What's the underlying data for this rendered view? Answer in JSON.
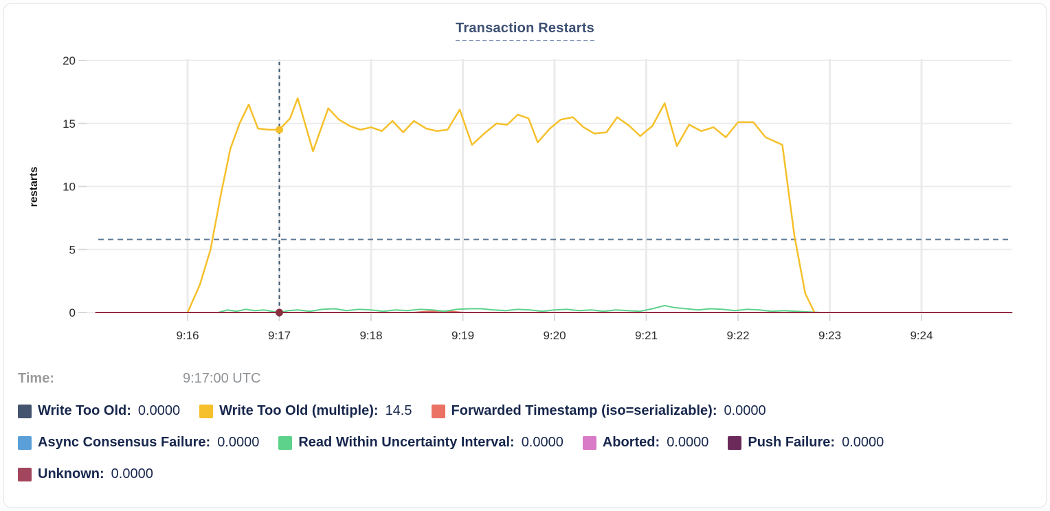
{
  "chart_data": {
    "type": "line",
    "title": "Transaction Restarts",
    "ylabel": "restarts",
    "xlabel": "",
    "ylim": [
      0,
      20
    ],
    "y_ticks": [
      0,
      5,
      10,
      15,
      20
    ],
    "x_ticks": [
      "9:16",
      "9:17",
      "9:18",
      "9:19",
      "9:20",
      "9:21",
      "9:22",
      "9:23",
      "9:24"
    ],
    "grid": true,
    "legend_position": "bottom",
    "hover": {
      "time": "9:17:00 UTC",
      "crosshair_tick": "9:17",
      "guide_value": 5.8,
      "points": [
        {
          "series": "Write Too Old (multiple)",
          "value": 14.5,
          "color": "#f5c02b"
        },
        {
          "series": "Unknown",
          "value": 0,
          "color": "#8a2f3f"
        }
      ]
    },
    "series": [
      {
        "name": "Write Too Old",
        "color": "#44536e",
        "points": [
          [
            -60,
            0
          ],
          [
            539,
            0
          ]
        ]
      },
      {
        "name": "Async Consensus Failure",
        "color": "#5b9fd8",
        "points": [
          [
            -60,
            0
          ],
          [
            539,
            0
          ]
        ]
      },
      {
        "name": "Aborted",
        "color": "#d97bc6",
        "points": [
          [
            -60,
            0
          ],
          [
            539,
            0
          ]
        ]
      },
      {
        "name": "Push Failure",
        "color": "#6c2a5b",
        "points": [
          [
            -60,
            0
          ],
          [
            539,
            0
          ]
        ]
      },
      {
        "name": "Forwarded Timestamp (iso=serializable)",
        "color": "#eb7164",
        "points": [
          [
            -60,
            0
          ],
          [
            148,
            0
          ],
          [
            156,
            0.08
          ],
          [
            164,
            0.12
          ],
          [
            172,
            0.1
          ],
          [
            180,
            0
          ],
          [
            539,
            0
          ]
        ]
      },
      {
        "name": "Read Within Uncertainty Interval",
        "color": "#5cd28a",
        "points": [
          [
            -60,
            0
          ],
          [
            20,
            0
          ],
          [
            26,
            0.2
          ],
          [
            32,
            0.1
          ],
          [
            38,
            0.25
          ],
          [
            44,
            0.15
          ],
          [
            50,
            0.2
          ],
          [
            55,
            0.1
          ],
          [
            60,
            0
          ],
          [
            66,
            0.15
          ],
          [
            72,
            0.2
          ],
          [
            80,
            0.1
          ],
          [
            88,
            0.25
          ],
          [
            96,
            0.3
          ],
          [
            104,
            0.15
          ],
          [
            112,
            0.25
          ],
          [
            120,
            0.2
          ],
          [
            128,
            0.1
          ],
          [
            136,
            0.2
          ],
          [
            144,
            0.15
          ],
          [
            152,
            0.25
          ],
          [
            160,
            0.2
          ],
          [
            168,
            0.1
          ],
          [
            176,
            0.25
          ],
          [
            184,
            0.3
          ],
          [
            192,
            0.3
          ],
          [
            200,
            0.2
          ],
          [
            208,
            0.15
          ],
          [
            216,
            0.25
          ],
          [
            224,
            0.2
          ],
          [
            232,
            0.1
          ],
          [
            240,
            0.2
          ],
          [
            248,
            0.25
          ],
          [
            256,
            0.15
          ],
          [
            264,
            0.2
          ],
          [
            272,
            0.1
          ],
          [
            280,
            0.2
          ],
          [
            288,
            0.15
          ],
          [
            296,
            0.1
          ],
          [
            304,
            0.3
          ],
          [
            312,
            0.55
          ],
          [
            318,
            0.4
          ],
          [
            326,
            0.3
          ],
          [
            334,
            0.2
          ],
          [
            342,
            0.3
          ],
          [
            350,
            0.25
          ],
          [
            358,
            0.15
          ],
          [
            366,
            0.25
          ],
          [
            374,
            0.2
          ],
          [
            382,
            0.1
          ],
          [
            390,
            0.15
          ],
          [
            398,
            0.1
          ],
          [
            406,
            0.05
          ],
          [
            414,
            0
          ],
          [
            539,
            0
          ]
        ]
      },
      {
        "name": "Write Too Old (multiple)",
        "color": "#f5c02b",
        "points": [
          [
            0,
            0
          ],
          [
            8,
            2.2
          ],
          [
            15,
            5.0
          ],
          [
            22,
            9.5
          ],
          [
            28,
            13.0
          ],
          [
            34,
            15.0
          ],
          [
            40,
            16.5
          ],
          [
            46,
            14.6
          ],
          [
            53,
            14.5
          ],
          [
            60,
            14.5
          ],
          [
            67,
            15.4
          ],
          [
            72,
            17.0
          ],
          [
            82,
            12.8
          ],
          [
            92,
            16.2
          ],
          [
            99,
            15.3
          ],
          [
            106,
            14.8
          ],
          [
            113,
            14.5
          ],
          [
            120,
            14.7
          ],
          [
            127,
            14.4
          ],
          [
            134,
            15.2
          ],
          [
            141,
            14.3
          ],
          [
            148,
            15.2
          ],
          [
            156,
            14.6
          ],
          [
            163,
            14.4
          ],
          [
            170,
            14.5
          ],
          [
            178,
            16.1
          ],
          [
            186,
            13.3
          ],
          [
            194,
            14.2
          ],
          [
            202,
            15.0
          ],
          [
            209,
            14.9
          ],
          [
            216,
            15.7
          ],
          [
            223,
            15.4
          ],
          [
            229,
            13.5
          ],
          [
            237,
            14.6
          ],
          [
            244,
            15.3
          ],
          [
            252,
            15.5
          ],
          [
            259,
            14.7
          ],
          [
            266,
            14.2
          ],
          [
            274,
            14.3
          ],
          [
            281,
            15.5
          ],
          [
            289,
            14.8
          ],
          [
            296,
            14.0
          ],
          [
            304,
            14.8
          ],
          [
            312,
            16.6
          ],
          [
            320,
            13.2
          ],
          [
            328,
            14.9
          ],
          [
            336,
            14.4
          ],
          [
            344,
            14.7
          ],
          [
            352,
            13.9
          ],
          [
            360,
            15.1
          ],
          [
            370,
            15.1
          ],
          [
            378,
            13.9
          ],
          [
            389,
            13.3
          ],
          [
            397,
            6.0
          ],
          [
            404,
            1.5
          ],
          [
            410,
            0
          ]
        ]
      },
      {
        "name": "Unknown",
        "color": "#932c42",
        "points": [
          [
            -60,
            0
          ],
          [
            539,
            0
          ]
        ]
      }
    ]
  },
  "time_row": {
    "label": "Time:",
    "value": "9:17:00 UTC"
  },
  "legend": {
    "rows": [
      [
        {
          "label": "Write Too Old:",
          "value": "0.0000",
          "color": "#44536e"
        },
        {
          "label": "Write Too Old (multiple):",
          "value": "14.5",
          "color": "#f5c02b"
        },
        {
          "label": "Forwarded Timestamp (iso=serializable):",
          "value": "0.0000",
          "color": "#eb7164"
        }
      ],
      [
        {
          "label": "Async Consensus Failure:",
          "value": "0.0000",
          "color": "#5b9fd8"
        },
        {
          "label": "Read Within Uncertainty Interval:",
          "value": "0.0000",
          "color": "#5cd28a"
        },
        {
          "label": "Aborted:",
          "value": "0.0000",
          "color": "#d97bc6"
        },
        {
          "label": "Push Failure:",
          "value": "0.0000",
          "color": "#6c2a5b"
        }
      ],
      [
        {
          "label": "Unknown:",
          "value": "0.0000",
          "color": "#a3455c"
        }
      ]
    ]
  }
}
